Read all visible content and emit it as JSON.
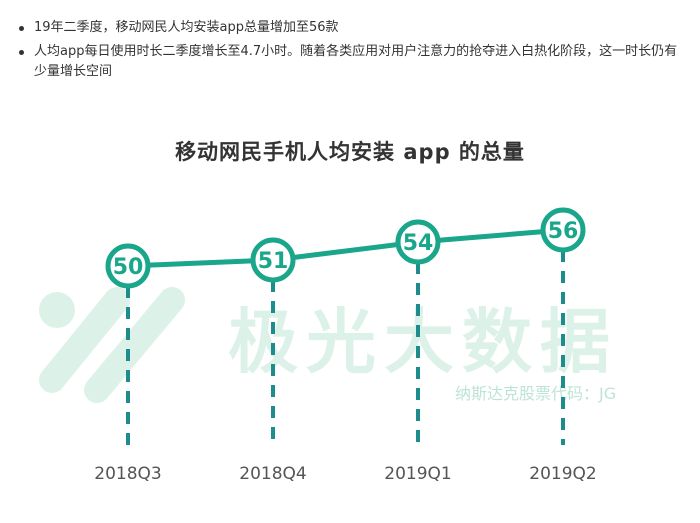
{
  "bullets": [
    "19年二季度，移动网民人均安装app总量增加至56款",
    "人均app每日使用时长二季度增长至4.7小时。随着各类应用对用户注意力的抢夺进入白热化阶段，这一时长仍有少量增长空间"
  ],
  "watermark": {
    "text": "极光大数据",
    "subtext": "纳斯达克股票代码：JG"
  },
  "colors": {
    "accent": "#1aa68a",
    "dash": "#1e8c8c",
    "text": "#333333"
  },
  "chart_data": {
    "type": "line",
    "title": "移动网民手机人均安装 app 的总量",
    "categories": [
      "2018Q3",
      "2018Q4",
      "2019Q1",
      "2019Q2"
    ],
    "series": [
      {
        "values": [
          50,
          51,
          54,
          56
        ]
      }
    ],
    "data_labels": [
      "50",
      "51",
      "54",
      "56"
    ],
    "grid": false,
    "legend": "none"
  }
}
